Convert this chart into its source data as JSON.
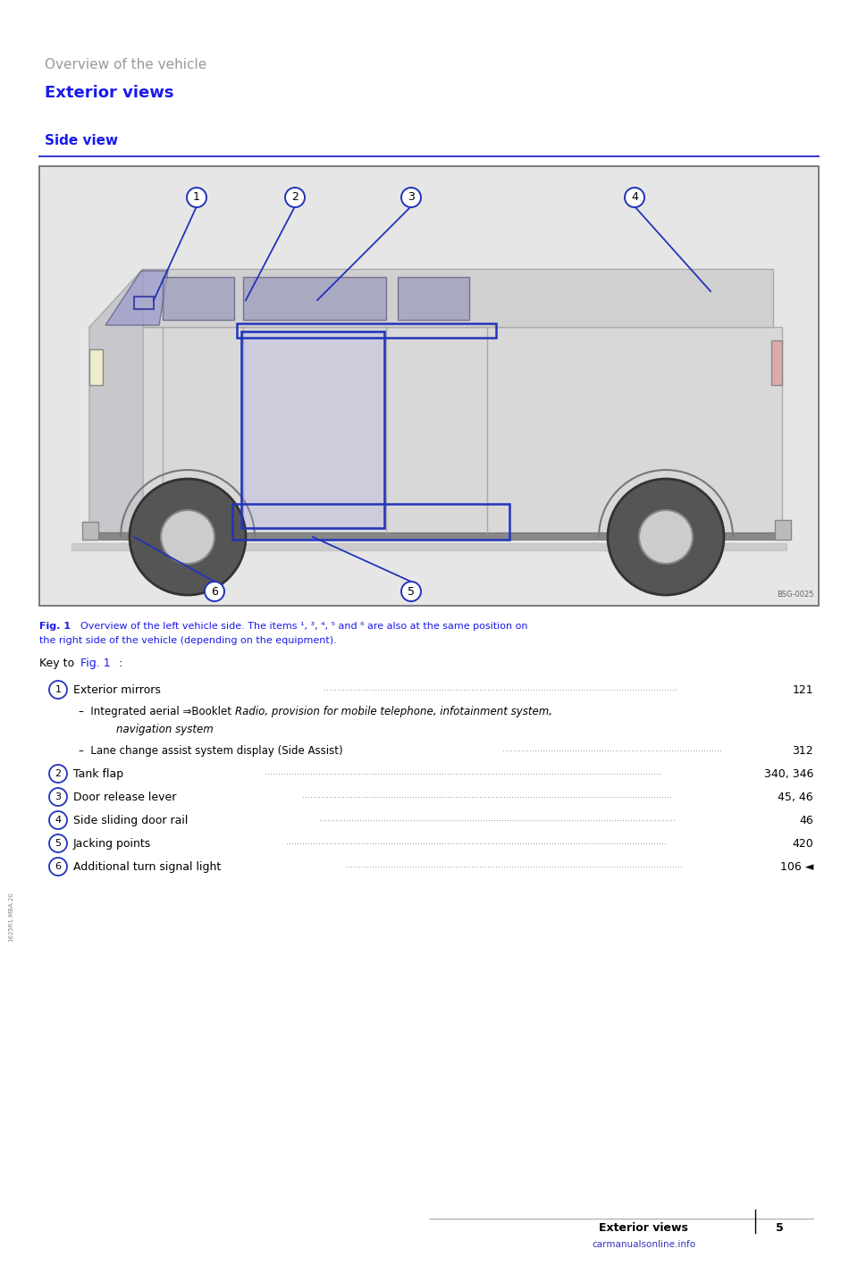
{
  "bg_color": "#ffffff",
  "page_width": 9.6,
  "page_height": 14.26,
  "section_title": "Overview of the vehicle",
  "section_title_color": "#999999",
  "section_title_size": 11,
  "subsection_title": "Exterior views",
  "subsection_title_color": "#1a1aee",
  "subsection_title_size": 13,
  "sub2_title": "Side view",
  "sub2_title_color": "#1a1aee",
  "sub2_title_size": 11,
  "blue_line_color": "#2222cc",
  "fig_caption_color": "#1a1aee",
  "fig_caption_size": 8,
  "key_title_size": 9,
  "key_entry_size": 9,
  "key_sub_size": 8.5,
  "footer_text": "Exterior views",
  "footer_page": "5",
  "footer_color": "#000000",
  "footer_size": 9,
  "watermark": "carmanualsonline.info",
  "watermark_color": "#3333bb",
  "side_text": "1625R1.MBA.20",
  "circle_color": "#2233bb",
  "dot_color": "#888888",
  "text_color": "#000000"
}
